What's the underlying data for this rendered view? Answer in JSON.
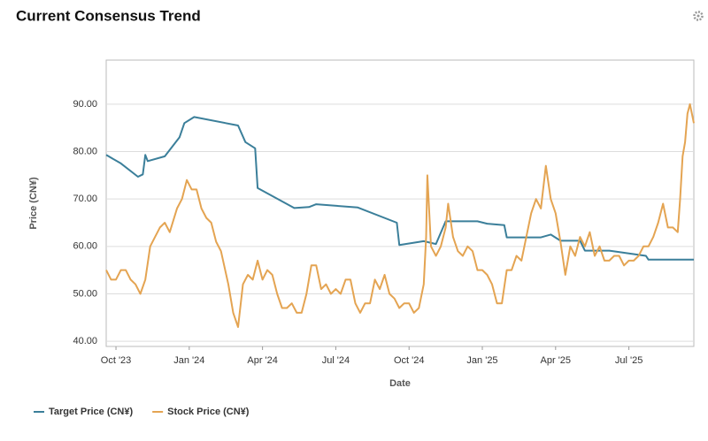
{
  "chart_data": {
    "type": "line",
    "title": "Current Consensus Trend",
    "x_label": "Date",
    "y_label": "Price (CN¥)",
    "xlim": [
      -0.4,
      23.66
    ],
    "ylim": [
      38.9,
      99.3
    ],
    "xticks": [
      {
        "value": 0,
        "label": "Oct '23"
      },
      {
        "value": 3,
        "label": "Jan '24"
      },
      {
        "value": 6,
        "label": "Apr '24"
      },
      {
        "value": 9,
        "label": "Jul '24"
      },
      {
        "value": 12,
        "label": "Oct '24"
      },
      {
        "value": 15,
        "label": "Jan '25"
      },
      {
        "value": 18,
        "label": "Apr '25"
      },
      {
        "value": 21,
        "label": "Jul '25"
      }
    ],
    "yticks": [
      {
        "value": 40,
        "label": "40.00"
      },
      {
        "value": 50,
        "label": "50.00"
      },
      {
        "value": 60,
        "label": "60.00"
      },
      {
        "value": 70,
        "label": "70.00"
      },
      {
        "value": 80,
        "label": "80.00"
      },
      {
        "value": 90,
        "label": "90.00"
      }
    ],
    "grid": true,
    "legend": "bottom-left",
    "series": [
      {
        "name": "Target Price (CN¥)",
        "color": "#3b7f9a",
        "x": [
          -0.4,
          0.2,
          0.9,
          1.1,
          1.2,
          1.3,
          2.0,
          2.6,
          2.8,
          3.2,
          5.0,
          5.3,
          5.7,
          5.8,
          7.3,
          7.9,
          8.2,
          9.9,
          11.5,
          11.6,
          12.6,
          13.1,
          13.5,
          14.8,
          15.2,
          15.9,
          16.0,
          17.4,
          17.8,
          18.2,
          19.0,
          19.2,
          20.2,
          21.7,
          21.8,
          23.66
        ],
        "values": [
          79.3,
          77.5,
          74.7,
          75.2,
          79.3,
          78.0,
          79.0,
          83.0,
          86.0,
          87.3,
          85.5,
          82.0,
          80.7,
          72.3,
          68.1,
          68.3,
          68.9,
          68.2,
          65.0,
          60.3,
          61.1,
          60.5,
          65.3,
          65.3,
          64.8,
          64.5,
          61.9,
          61.9,
          62.5,
          61.2,
          61.2,
          59.1,
          59.1,
          58.0,
          57.2,
          57.2
        ]
      },
      {
        "name": "Stock Price (CN¥)",
        "color": "#e4a452",
        "x": [
          -0.4,
          -0.2,
          0,
          0.2,
          0.4,
          0.6,
          0.8,
          1.0,
          1.2,
          1.4,
          1.6,
          1.8,
          2.0,
          2.2,
          2.5,
          2.7,
          2.9,
          3.1,
          3.3,
          3.5,
          3.7,
          3.9,
          4.1,
          4.3,
          4.6,
          4.8,
          5.0,
          5.2,
          5.4,
          5.6,
          5.8,
          6.0,
          6.2,
          6.4,
          6.6,
          6.8,
          7.0,
          7.2,
          7.4,
          7.6,
          7.8,
          8.0,
          8.2,
          8.4,
          8.6,
          8.8,
          9.0,
          9.2,
          9.4,
          9.6,
          9.8,
          10.0,
          10.2,
          10.4,
          10.6,
          10.8,
          11.0,
          11.2,
          11.4,
          11.6,
          11.8,
          12.0,
          12.2,
          12.4,
          12.6,
          12.7,
          12.75,
          12.9,
          13.1,
          13.3,
          13.5,
          13.6,
          13.8,
          14.0,
          14.2,
          14.4,
          14.6,
          14.8,
          15.0,
          15.2,
          15.4,
          15.6,
          15.8,
          16.0,
          16.2,
          16.4,
          16.6,
          16.8,
          17.0,
          17.2,
          17.4,
          17.6,
          17.8,
          18.0,
          18.2,
          18.4,
          18.6,
          18.8,
          19.0,
          19.2,
          19.4,
          19.6,
          19.8,
          20.0,
          20.2,
          20.4,
          20.6,
          20.8,
          21.0,
          21.2,
          21.4,
          21.6,
          21.8,
          22.0,
          22.2,
          22.4,
          22.6,
          22.8,
          23.0,
          23.1,
          23.2,
          23.3,
          23.4,
          23.5,
          23.66
        ],
        "values": [
          55,
          53,
          53,
          55,
          55,
          53,
          52,
          50,
          53,
          60,
          62,
          64,
          65,
          63,
          68,
          70,
          74,
          72,
          72,
          68,
          66,
          65,
          61,
          59,
          52,
          46,
          43,
          52,
          54,
          53,
          57,
          53,
          55,
          54,
          50,
          47,
          47,
          48,
          46,
          46,
          50,
          56,
          56,
          51,
          52,
          50,
          51,
          50,
          53,
          53,
          48,
          46,
          48,
          48,
          53,
          51,
          54,
          50,
          49,
          47,
          48,
          48,
          46,
          47,
          52,
          62,
          75,
          60,
          58,
          60,
          64,
          69,
          62,
          59,
          58,
          60,
          59,
          55,
          55,
          54,
          52,
          48,
          48,
          55,
          55,
          58,
          57,
          62,
          67,
          70,
          68,
          77,
          70,
          67,
          61,
          54,
          60,
          58,
          62,
          60,
          63,
          58,
          60,
          57,
          57,
          58,
          58,
          56,
          57,
          57,
          58,
          60,
          60,
          62,
          65,
          69,
          64,
          64,
          63,
          70,
          79,
          82,
          88,
          90,
          86
        ]
      }
    ]
  }
}
